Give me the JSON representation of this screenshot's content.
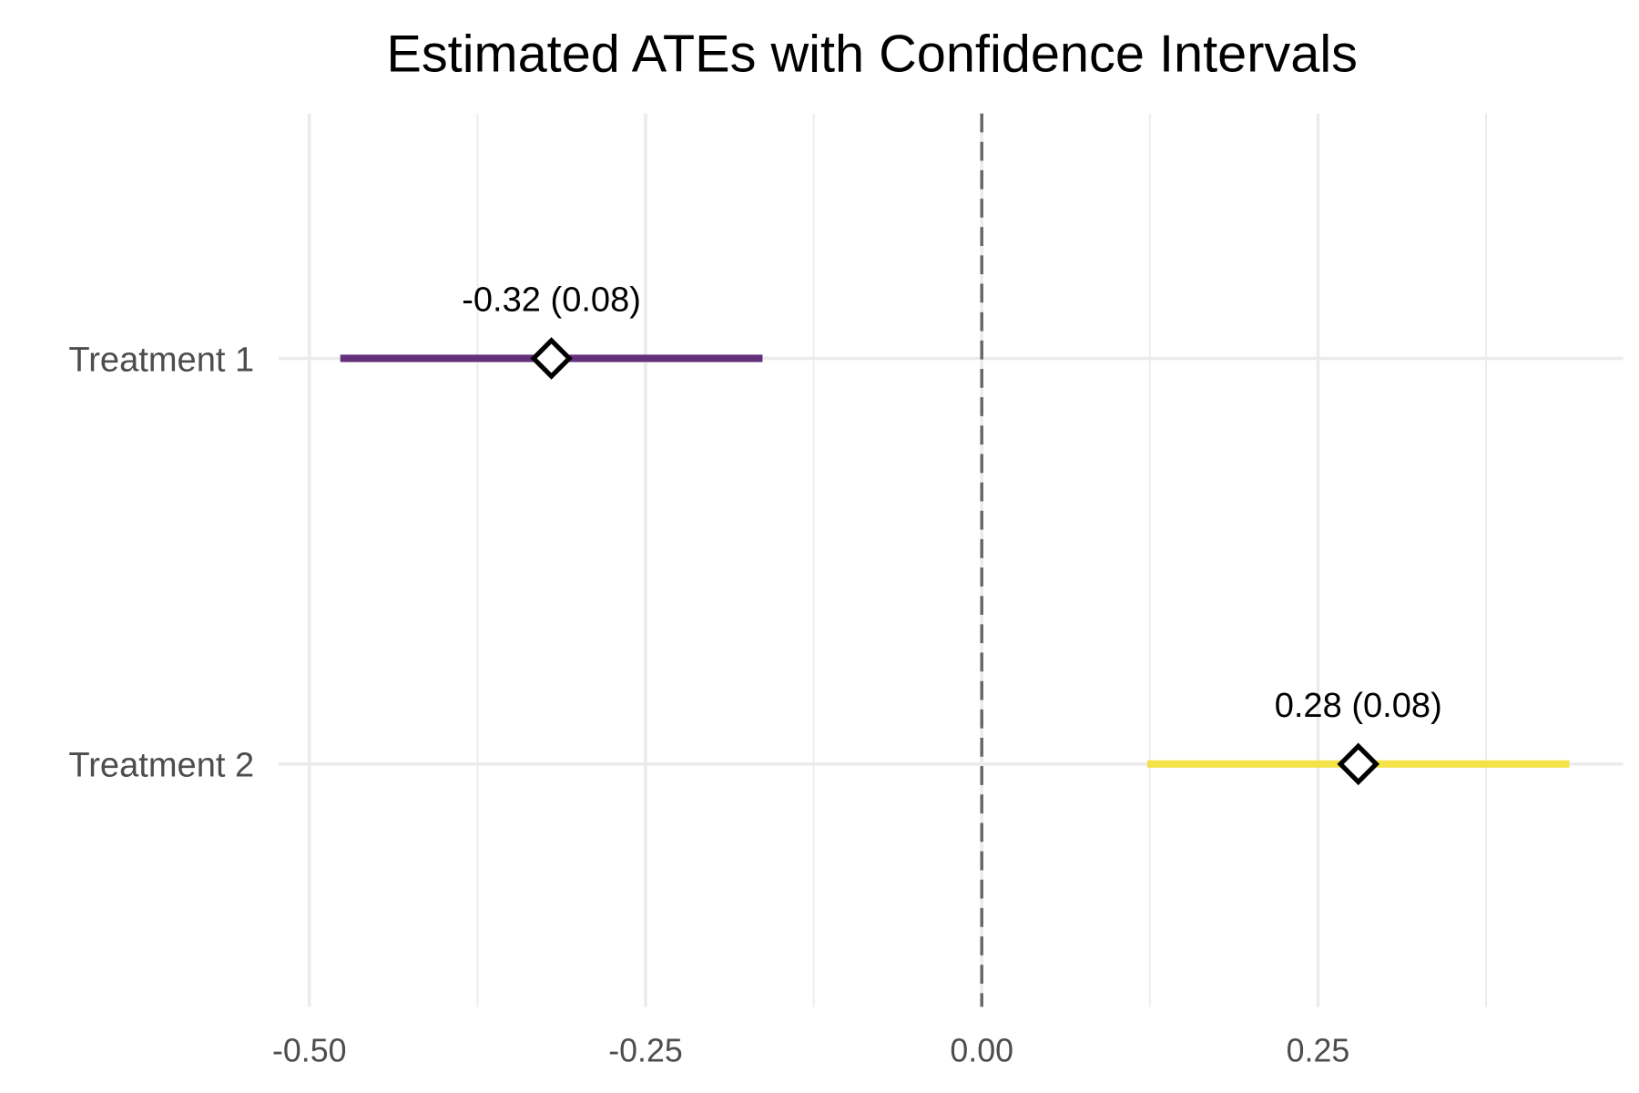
{
  "chart_data": {
    "type": "forest",
    "title": "Estimated ATEs with Confidence Intervals",
    "xlabel": "",
    "ylabel": "",
    "xlim": [
      -0.523,
      0.477
    ],
    "x_ticks": [
      -0.5,
      -0.25,
      0.0,
      0.25
    ],
    "x_tick_labels": [
      "-0.50",
      "-0.25",
      "0.00",
      "0.25"
    ],
    "grid": true,
    "reference_line": {
      "x": 0,
      "style": "dashed",
      "color": "#666666"
    },
    "categories": [
      "Treatment 1",
      "Treatment 2"
    ],
    "series": [
      {
        "category": "Treatment 1",
        "estimate": -0.32,
        "se": 0.08,
        "ci_low": -0.477,
        "ci_high": -0.163,
        "label": "-0.32 (0.08)",
        "color": "#65307A"
      },
      {
        "category": "Treatment 2",
        "estimate": 0.28,
        "se": 0.08,
        "ci_low": 0.123,
        "ci_high": 0.437,
        "label": "0.28 (0.08)",
        "color": "#F5E24A"
      }
    ]
  }
}
